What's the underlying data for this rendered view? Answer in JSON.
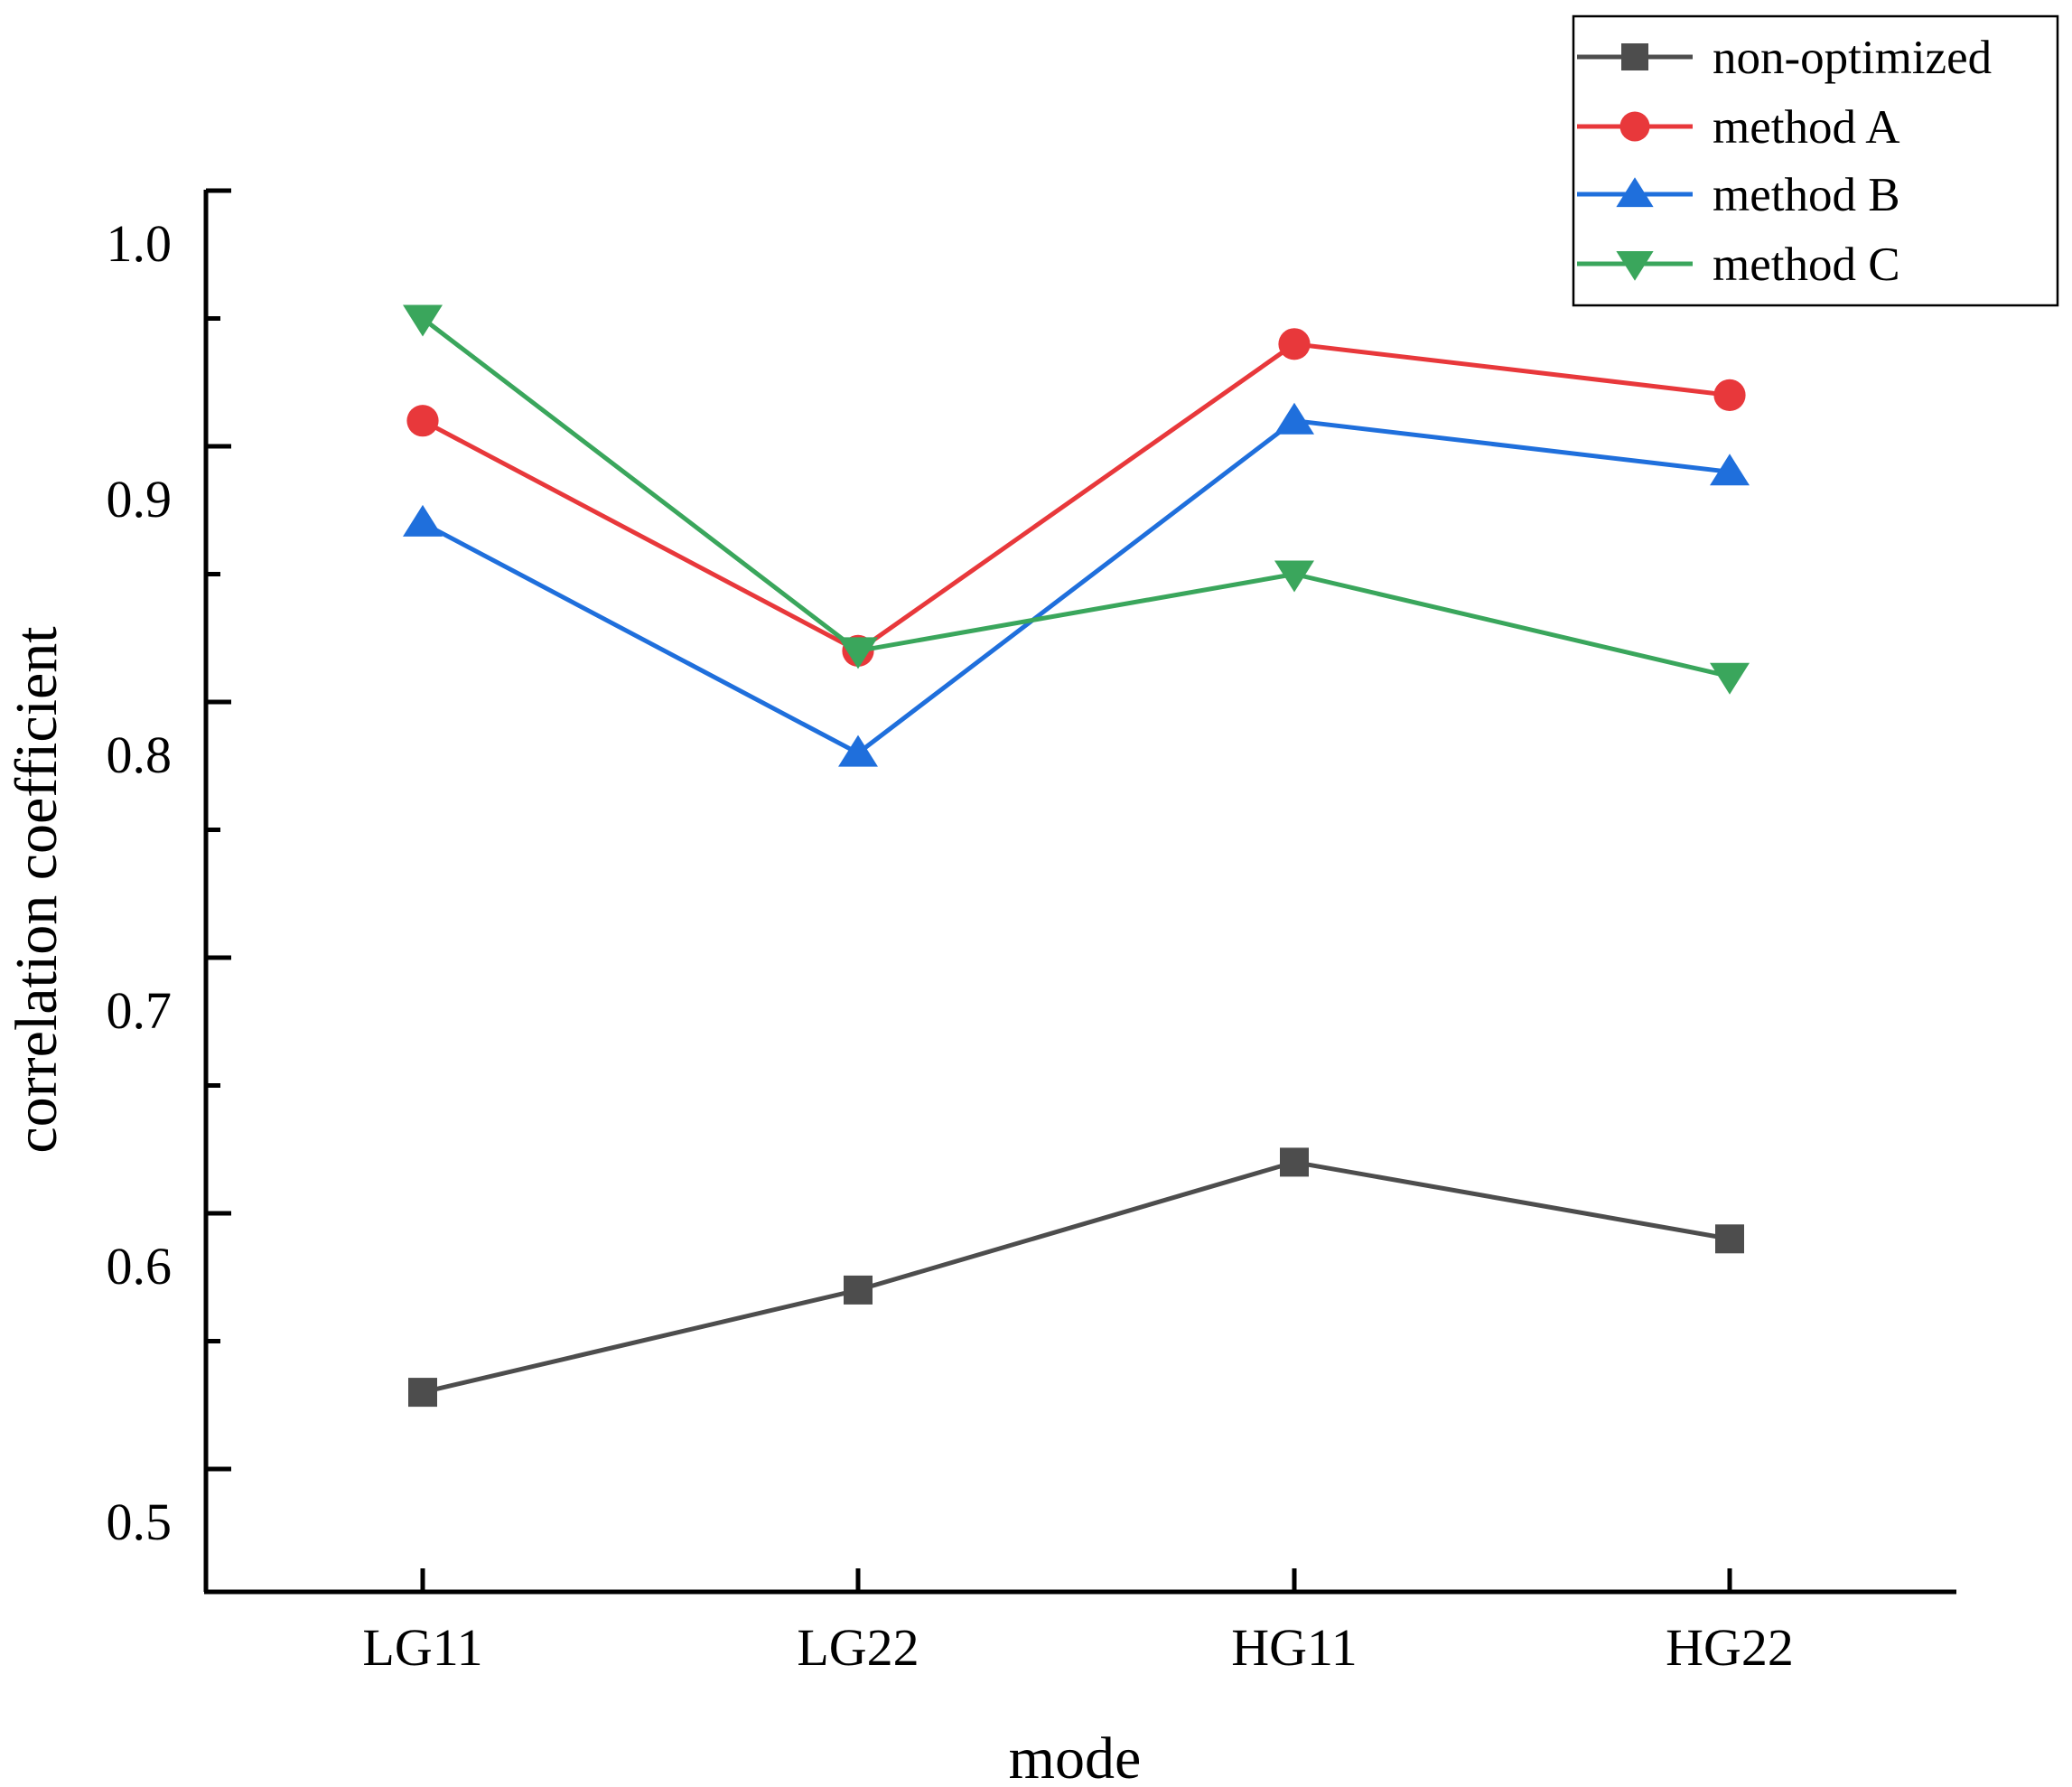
{
  "chart_data": {
    "type": "line",
    "title": "",
    "xlabel": "mode",
    "ylabel": "correlation coefficient",
    "categories": [
      "LG11",
      "LG22",
      "HG11",
      "HG22"
    ],
    "ylim": [
      0.45,
      1.02
    ],
    "yticks": [
      0.5,
      0.6,
      0.7,
      0.8,
      0.9,
      1.0
    ],
    "ytick_labels": [
      "0.5",
      "0.6",
      "0.7",
      "0.8",
      "0.9",
      "1.0"
    ],
    "grid": false,
    "legend_position": "top-right",
    "series": [
      {
        "name": "non-optimized",
        "color": "#4d4d4d",
        "marker": "square",
        "values": [
          0.53,
          0.57,
          0.62,
          0.59
        ]
      },
      {
        "name": "method A",
        "color": "#e8383b",
        "marker": "circle",
        "values": [
          0.91,
          0.82,
          0.94,
          0.92
        ]
      },
      {
        "name": "method B",
        "color": "#1f6fdc",
        "marker": "triangle-up",
        "values": [
          0.87,
          0.78,
          0.91,
          0.89
        ]
      },
      {
        "name": "method C",
        "color": "#3aa65c",
        "marker": "triangle-down",
        "values": [
          0.95,
          0.82,
          0.85,
          0.81
        ]
      }
    ]
  }
}
